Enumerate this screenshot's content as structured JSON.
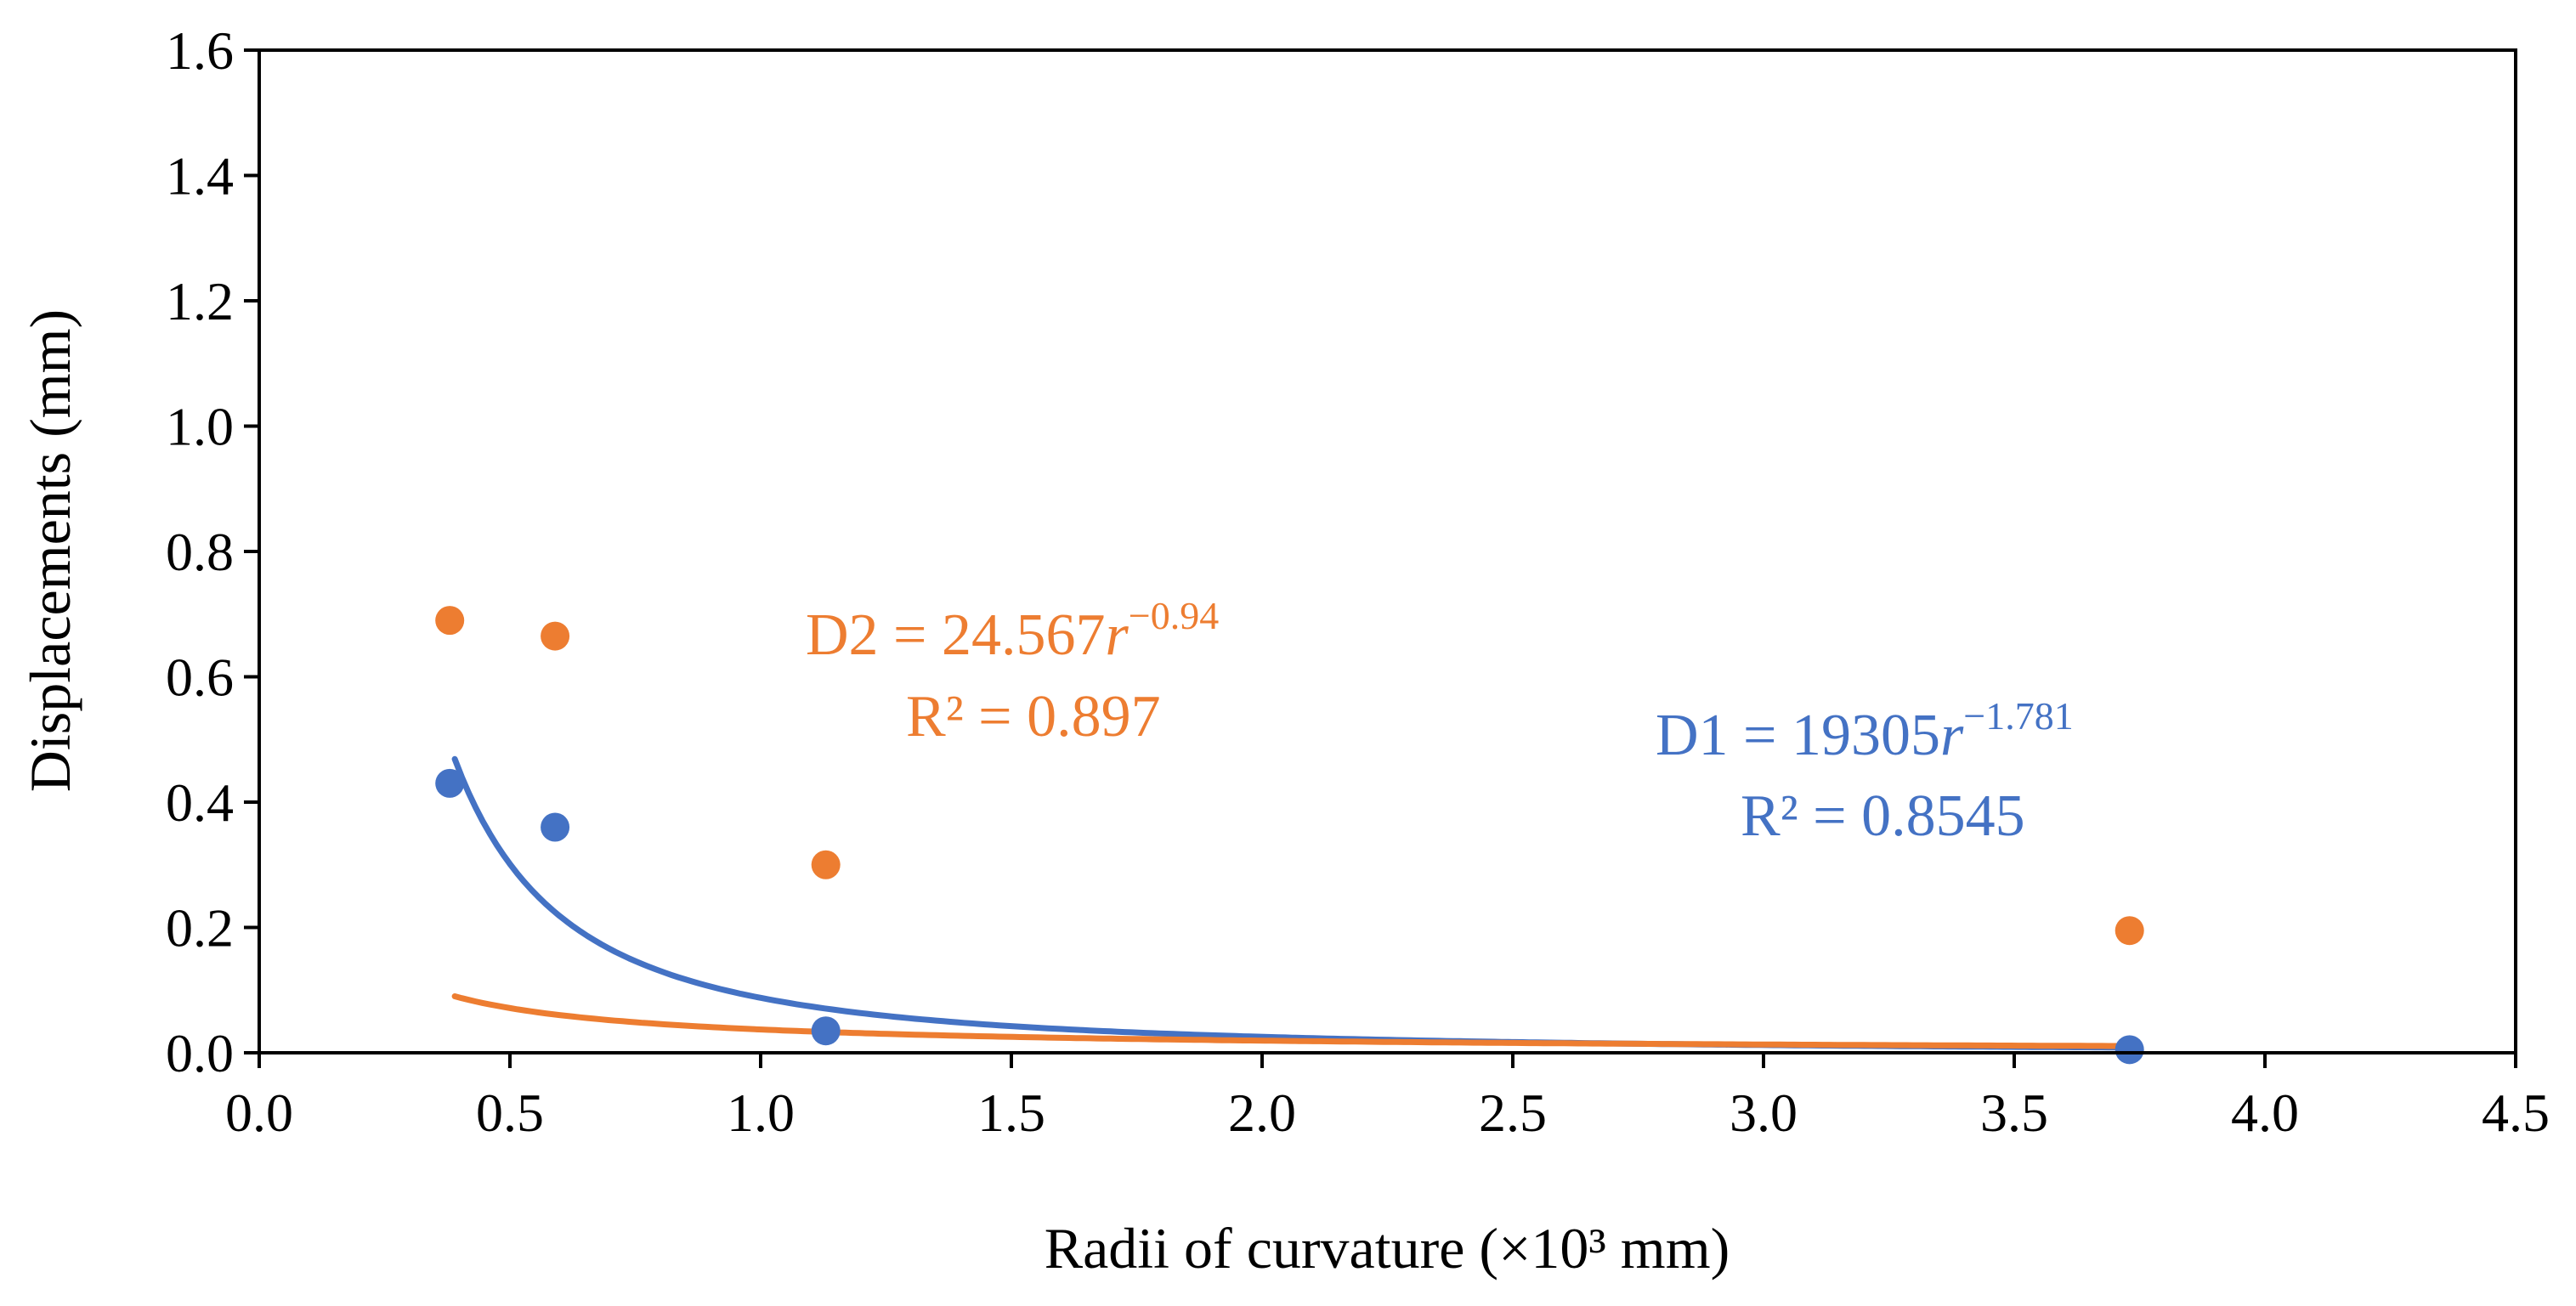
{
  "chart_data": {
    "type": "scatter",
    "xlabel": "Radii  of curvature  (×10³ mm)",
    "ylabel": "Displacements  (mm)",
    "xlim": [
      0,
      4.5
    ],
    "ylim": [
      0,
      1.6
    ],
    "x_ticks": [
      0,
      0.5,
      1.0,
      1.5,
      2.0,
      2.5,
      3.0,
      3.5,
      4.0,
      4.5
    ],
    "x_tick_labels": [
      "0.0",
      "0.5",
      "1.0",
      "1.5",
      "2.0",
      "2.5",
      "3.0",
      "3.5",
      "4.0",
      "4.5"
    ],
    "y_ticks": [
      0,
      0.2,
      0.4,
      0.6,
      0.8,
      1.0,
      1.2,
      1.4,
      1.6
    ],
    "y_tick_labels": [
      "0.0",
      "0.2",
      "0.4",
      "0.6",
      "0.8",
      "1.0",
      "1.2",
      "1.4",
      "1.6"
    ],
    "grid": false,
    "series": [
      {
        "name": "D1",
        "color": "#4472C4",
        "x": [
          0.38,
          0.59,
          1.13,
          3.73
        ],
        "y": [
          0.43,
          0.36,
          0.035,
          0.005
        ],
        "fit": {
          "kind": "power",
          "coefficient": 19305,
          "exponent": -1.781,
          "x_range": [
            0.39,
            3.73
          ]
        },
        "equation": {
          "prefix": "D1 = 19305",
          "var": "r",
          "exponent": "−1.781",
          "r2": "R² = 0.8545"
        }
      },
      {
        "name": "D2",
        "color": "#ED7D31",
        "x": [
          0.38,
          0.59,
          1.13,
          3.73
        ],
        "y": [
          0.69,
          0.665,
          0.3,
          0.195
        ],
        "fit": {
          "kind": "power",
          "coefficient": 24.567,
          "exponent": -0.94,
          "x_range": [
            0.39,
            3.73
          ]
        },
        "equation": {
          "prefix": "D2 = 24.567",
          "var": "r",
          "exponent": "−0.94",
          "r2": "R² = 0.897"
        }
      }
    ]
  }
}
